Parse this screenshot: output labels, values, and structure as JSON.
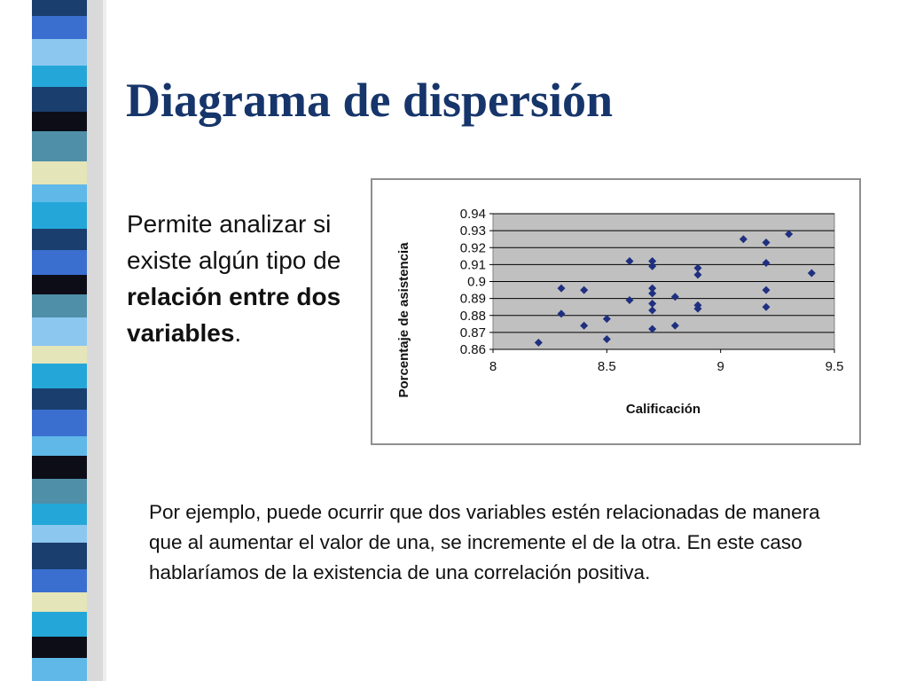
{
  "slide": {
    "title": "Diagrama de dispersión",
    "intro": {
      "part1": "Permite analizar si existe algún tipo de ",
      "bold": "relación entre dos variables",
      "part2": "."
    },
    "example": "Por ejemplo, puede ocurrir que dos variables estén relacionadas de manera que al aumentar el valor de una, se incremente el de la otra. En este caso hablaríamos de la existencia de una correlación positiva.",
    "colors": {
      "title": "#16356b",
      "plot_background": "#c0c0c0",
      "marker": "#1f2f80",
      "stripe_palette": [
        "#1a3f6f",
        "#3a6fd0",
        "#24a7d8",
        "#5fb8e8",
        "#4f8fa8",
        "#e4e5b8",
        "#0d0d18",
        "#8cc7f0"
      ]
    }
  },
  "chart_data": {
    "type": "scatter",
    "title": "",
    "xlabel": "Calificación",
    "ylabel": "Porcentaje de asistencia",
    "xlim": [
      8,
      9.5
    ],
    "ylim": [
      0.86,
      0.94
    ],
    "x_ticks": [
      "8",
      "8.5",
      "9",
      "9.5"
    ],
    "y_ticks": [
      "0.86",
      "0.87",
      "0.88",
      "0.89",
      "0.9",
      "0.91",
      "0.92",
      "0.93",
      "0.94"
    ],
    "grid": "horizontal",
    "legend": "none",
    "marker": "diamond",
    "points": [
      {
        "x": 8.2,
        "y": 0.864
      },
      {
        "x": 8.3,
        "y": 0.896
      },
      {
        "x": 8.3,
        "y": 0.881
      },
      {
        "x": 8.4,
        "y": 0.895
      },
      {
        "x": 8.4,
        "y": 0.874
      },
      {
        "x": 8.5,
        "y": 0.878
      },
      {
        "x": 8.5,
        "y": 0.866
      },
      {
        "x": 8.6,
        "y": 0.912
      },
      {
        "x": 8.6,
        "y": 0.889
      },
      {
        "x": 8.7,
        "y": 0.912
      },
      {
        "x": 8.7,
        "y": 0.909
      },
      {
        "x": 8.7,
        "y": 0.896
      },
      {
        "x": 8.7,
        "y": 0.893
      },
      {
        "x": 8.7,
        "y": 0.887
      },
      {
        "x": 8.7,
        "y": 0.883
      },
      {
        "x": 8.7,
        "y": 0.872
      },
      {
        "x": 8.8,
        "y": 0.891
      },
      {
        "x": 8.8,
        "y": 0.874
      },
      {
        "x": 8.9,
        "y": 0.908
      },
      {
        "x": 8.9,
        "y": 0.904
      },
      {
        "x": 8.9,
        "y": 0.886
      },
      {
        "x": 8.9,
        "y": 0.884
      },
      {
        "x": 9.1,
        "y": 0.925
      },
      {
        "x": 9.2,
        "y": 0.923
      },
      {
        "x": 9.2,
        "y": 0.911
      },
      {
        "x": 9.2,
        "y": 0.895
      },
      {
        "x": 9.2,
        "y": 0.885
      },
      {
        "x": 9.3,
        "y": 0.928
      },
      {
        "x": 9.4,
        "y": 0.905
      }
    ]
  }
}
